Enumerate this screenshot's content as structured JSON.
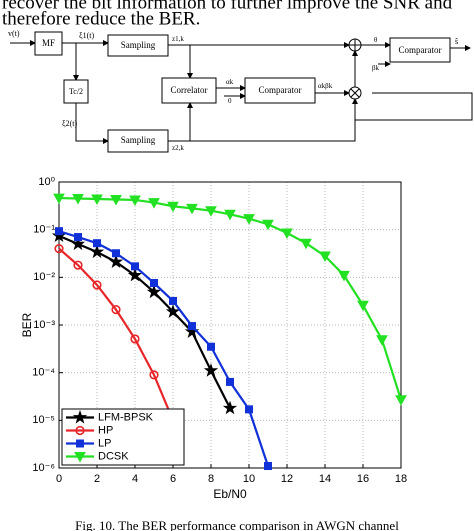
{
  "text": {
    "line1": "recover the bit information to further improve the SNR and",
    "line2": "therefore reduce the BER."
  },
  "diagram": {
    "blocks": [
      "MF",
      "Sampling",
      "Tc/2",
      "Correlator",
      "Comparator",
      "Sampling",
      "Comparator"
    ],
    "signals": [
      "v(t)",
      "ξ1(t)",
      "ξ2(t)",
      "z1,k",
      "z2,k",
      "αk",
      "0",
      "αkβk",
      "θ",
      "βk",
      "ŝ"
    ]
  },
  "chart_data": {
    "type": "line",
    "xlabel": "Eb/N0",
    "ylabel": "BER",
    "xlim": [
      0,
      18
    ],
    "xticks": [
      0,
      2,
      4,
      6,
      8,
      10,
      12,
      14,
      16,
      18
    ],
    "ylim": [
      1e-06,
      1
    ],
    "log_y": true,
    "grid": true,
    "legend": "lower left",
    "yticks": [
      {
        "value": 1e-06,
        "label": "10⁻⁶"
      },
      {
        "value": 1e-05,
        "label": "10⁻⁵"
      },
      {
        "value": 0.0001,
        "label": "10⁻⁴"
      },
      {
        "value": 0.001,
        "label": "10⁻³"
      },
      {
        "value": 0.01,
        "label": "10⁻²"
      },
      {
        "value": 0.1,
        "label": "10⁻¹"
      },
      {
        "value": 1,
        "label": "10⁰"
      }
    ],
    "series": [
      {
        "name": "LFM-BPSK",
        "color": "#000000",
        "marker": "star",
        "x": [
          0,
          1,
          2,
          3,
          4,
          5,
          6,
          7,
          8,
          9
        ],
        "values": [
          0.074,
          0.05,
          0.034,
          0.021,
          0.011,
          0.0049,
          0.0019,
          0.00072,
          0.00011,
          1.8e-05
        ]
      },
      {
        "name": "HP",
        "color": "#e8262a",
        "marker": "circle",
        "x": [
          0,
          1,
          2,
          3,
          4,
          5,
          6
        ],
        "values": [
          0.04,
          0.018,
          0.0069,
          0.0021,
          0.00051,
          9e-05,
          1e-05
        ]
      },
      {
        "name": "LP",
        "color": "#1030d8",
        "marker": "square",
        "x": [
          0,
          1,
          2,
          3,
          4,
          5,
          6,
          7,
          8,
          9,
          10,
          11
        ],
        "values": [
          0.093,
          0.07,
          0.052,
          0.032,
          0.017,
          0.0076,
          0.0032,
          0.00095,
          0.00035,
          6.4e-05,
          1.7e-05,
          1.1e-06
        ]
      },
      {
        "name": "DCSK",
        "color": "#22e022",
        "marker": "triangle",
        "x": [
          0,
          1,
          2,
          3,
          4,
          5,
          6,
          7,
          8,
          9,
          10,
          11,
          12,
          13,
          14,
          15,
          16,
          17,
          18
        ],
        "values": [
          0.46,
          0.45,
          0.44,
          0.43,
          0.42,
          0.37,
          0.31,
          0.28,
          0.25,
          0.21,
          0.17,
          0.13,
          0.085,
          0.052,
          0.028,
          0.011,
          0.0026,
          0.00049,
          2.7e-05
        ]
      }
    ]
  },
  "caption": "Fig. 10. The BER performance comparison in AWGN channel"
}
